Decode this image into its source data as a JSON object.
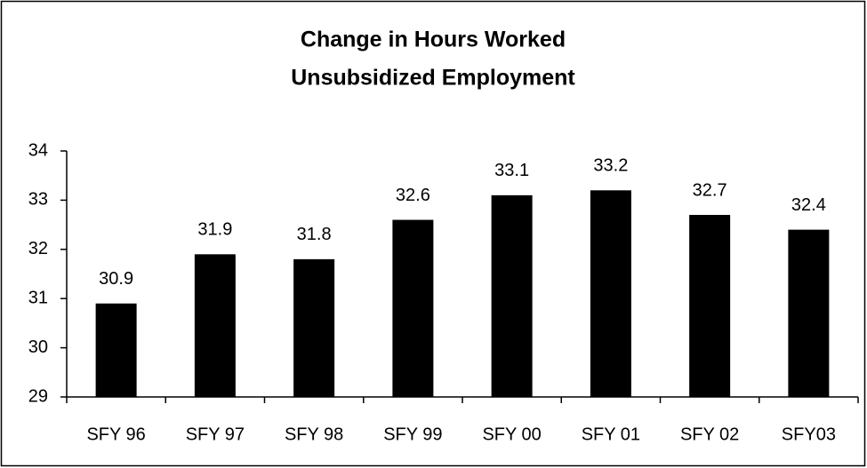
{
  "chart_data": {
    "type": "bar",
    "title": "Change in Hours Worked",
    "subtitle": "Unsubsidized Employment",
    "categories": [
      "SFY 96",
      "SFY 97",
      "SFY 98",
      "SFY 99",
      "SFY 00",
      "SFY 01",
      "SFY 02",
      "SFY03"
    ],
    "values": [
      30.9,
      31.9,
      31.8,
      32.6,
      33.1,
      33.2,
      32.7,
      32.4
    ],
    "color": "#000000",
    "ylim": [
      29,
      34
    ],
    "yticks": [
      29,
      30,
      31,
      32,
      33,
      34
    ],
    "grid": false,
    "data_labels": true
  }
}
